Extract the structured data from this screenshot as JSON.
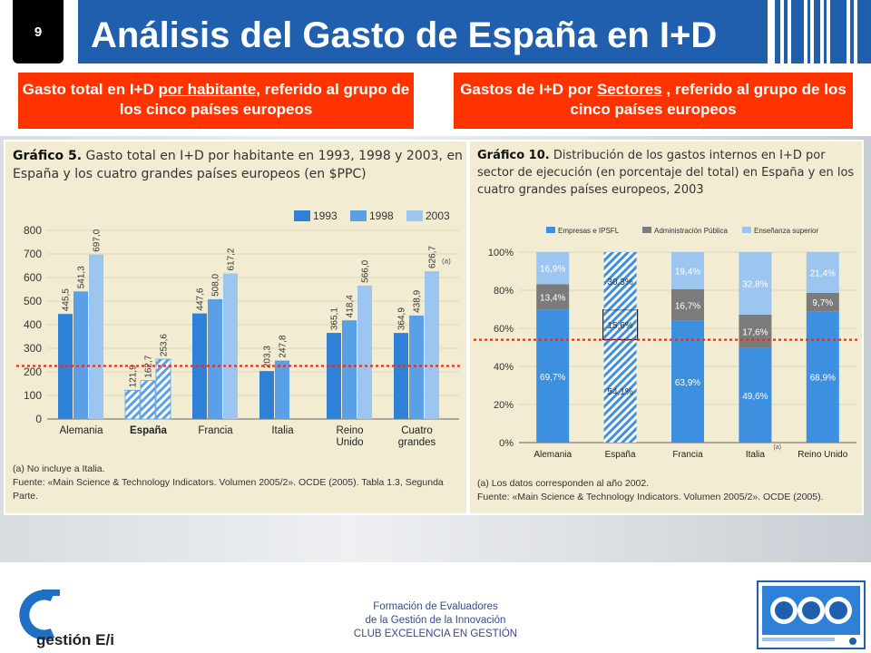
{
  "slide": {
    "page_number": "9",
    "title": "Análisis del Gasto de España en I+D",
    "left_box_pre": "Gasto total en I+D ",
    "left_box_u": "por habitante",
    "left_box_post": ", referido al grupo de los cinco países europeos",
    "right_box_pre": "Gastos de I+D por ",
    "right_box_u": "Sectores",
    "right_box_post": " , referido al grupo de los cinco países europeos",
    "footer_line1": "Formación de Evaluadores",
    "footer_line2": "de la Gestión de la Innovación",
    "footer_line3": "CLUB EXCELENCIA EN GESTIÓN",
    "logo_text": "gestión E/i"
  },
  "colors": {
    "title_bg": "#1f5fae",
    "red_box": "#ff3300",
    "y1993": "#2f80d7",
    "y1998": "#5aa0e6",
    "y2003": "#9cc6f0",
    "empresas": "#3d8fe0",
    "admin": "#7b7b7b",
    "ensenanza": "#9cc6f0",
    "dotted_line": "#e03020"
  },
  "chart1": {
    "label": "Gráfico 5.",
    "title": "Gasto total en I+D por habitante en 1993, 1998 y 2003, en España y los cuatro grandes países europeos (en $PPC)",
    "note_marker": "(a)",
    "note1": "No incluye a Italia.",
    "note2": "Fuente: «Main Science & Technology Indicators. Volumen 2005/2». OCDE (2005). Tabla 1.3, Segunda Parte."
  },
  "chart2": {
    "label": "Gráfico 10.",
    "title": "Distribución de los gastos internos en I+D por sector de ejecución (en porcentaje del total) en España y en los cuatro grandes países europeos, 2003",
    "note_marker": "(a)",
    "note1": "Los datos corresponden al año 2002.",
    "note2": "Fuente: «Main Science & Technology Indicators. Volumen 2005/2». OCDE (2005)."
  },
  "chart_data": [
    {
      "type": "bar",
      "categories": [
        "Alemania",
        "España",
        "Francia",
        "Italia",
        "Reino Unido",
        "Cuatro grandes"
      ],
      "series": [
        {
          "name": "1993",
          "values": [
            445.5,
            121.9,
            447.6,
            203.3,
            365.1,
            364.9
          ]
        },
        {
          "name": "1998",
          "values": [
            541.3,
            162.7,
            508.0,
            247.8,
            418.4,
            438.9
          ]
        },
        {
          "name": "2003",
          "values": [
            697.0,
            253.6,
            617.2,
            null,
            566.0,
            626.7
          ]
        }
      ],
      "value_labels": [
        [
          "445,5",
          "541,3",
          "697,0"
        ],
        [
          "121,9",
          "162,7",
          "253,6"
        ],
        [
          "447,6",
          "508,0",
          "617,2"
        ],
        [
          "203,3",
          "247,8",
          ""
        ],
        [
          "365,1",
          "418,4",
          "566,0"
        ],
        [
          "364,9",
          "438,9",
          "626,7"
        ]
      ],
      "y_ticks": [
        0,
        100,
        200,
        300,
        400,
        500,
        600,
        700,
        800
      ],
      "ylim": [
        0,
        800
      ],
      "reference_line": 225,
      "legend_position": "top-right",
      "category_footnote": {
        "category": "Cuatro grandes",
        "marker": "(a)"
      }
    },
    {
      "type": "bar",
      "stacked": true,
      "categories": [
        "Alemania",
        "España",
        "Francia",
        "Italia",
        "Reino Unido"
      ],
      "series": [
        {
          "name": "Empresas e IPSFL",
          "values": [
            69.7,
            54.1,
            63.9,
            49.6,
            68.9
          ]
        },
        {
          "name": "Administración Pública",
          "values": [
            13.4,
            15.6,
            16.7,
            17.6,
            9.7
          ]
        },
        {
          "name": "Enseñanza superior",
          "values": [
            16.9,
            30.3,
            19.4,
            32.8,
            21.4
          ]
        }
      ],
      "value_labels": [
        [
          "69,7%",
          "13,4%",
          "16,9%"
        ],
        [
          "54,1%",
          "15,6%",
          "30,3%"
        ],
        [
          "63,9%",
          "16,7%",
          "19,4%"
        ],
        [
          "49,6%",
          "17,6%",
          "32,8%"
        ],
        [
          "68,9%",
          "9,7%",
          "21,4%"
        ]
      ],
      "y_ticks": [
        "0%",
        "20%",
        "40%",
        "60%",
        "80%",
        "100%"
      ],
      "ylim": [
        0,
        100
      ],
      "reference_line": 54,
      "legend_position": "top",
      "category_footnote": {
        "category": "Italia",
        "marker": "(a)"
      }
    }
  ]
}
